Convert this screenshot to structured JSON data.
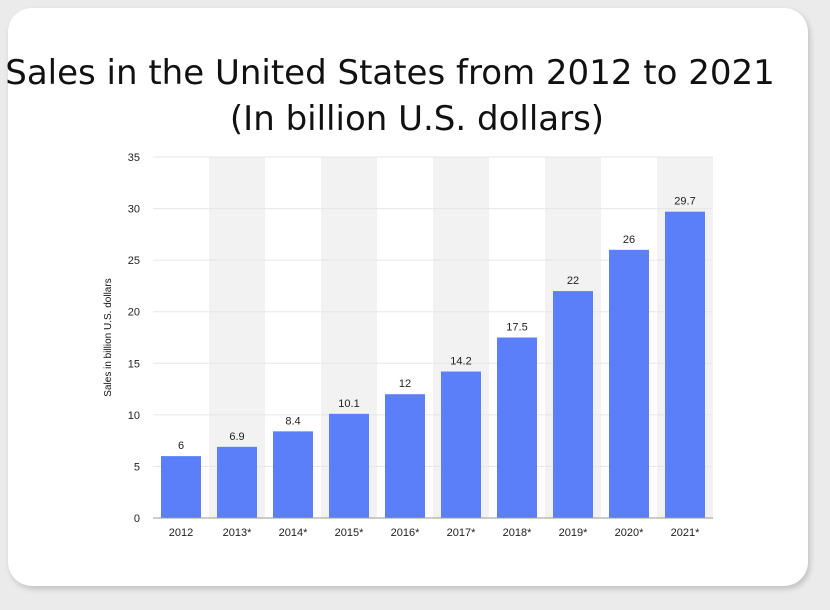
{
  "chart_data": {
    "type": "bar",
    "title_line1": "Sales in the United States from 2012 to 2021",
    "title_line2": "(In billion U.S. dollars)",
    "xlabel": "",
    "ylabel": "Sales in billion U.S. dollars",
    "categories": [
      "2012",
      "2013*",
      "2014*",
      "2015*",
      "2016*",
      "2017*",
      "2018*",
      "2019*",
      "2020*",
      "2021*"
    ],
    "values": [
      6,
      6.9,
      8.4,
      10.1,
      12,
      14.2,
      17.5,
      22,
      26,
      29.7
    ],
    "data_labels": [
      "6",
      "6.9",
      "8.4",
      "10.1",
      "12",
      "14.2",
      "17.5",
      "22",
      "26",
      "29.7"
    ],
    "yticks": [
      0,
      5,
      10,
      15,
      20,
      25,
      30,
      35
    ],
    "ylim": [
      0,
      35
    ],
    "bar_color": "#5b7ff8",
    "alt_band_color": "#f2f2f2"
  }
}
